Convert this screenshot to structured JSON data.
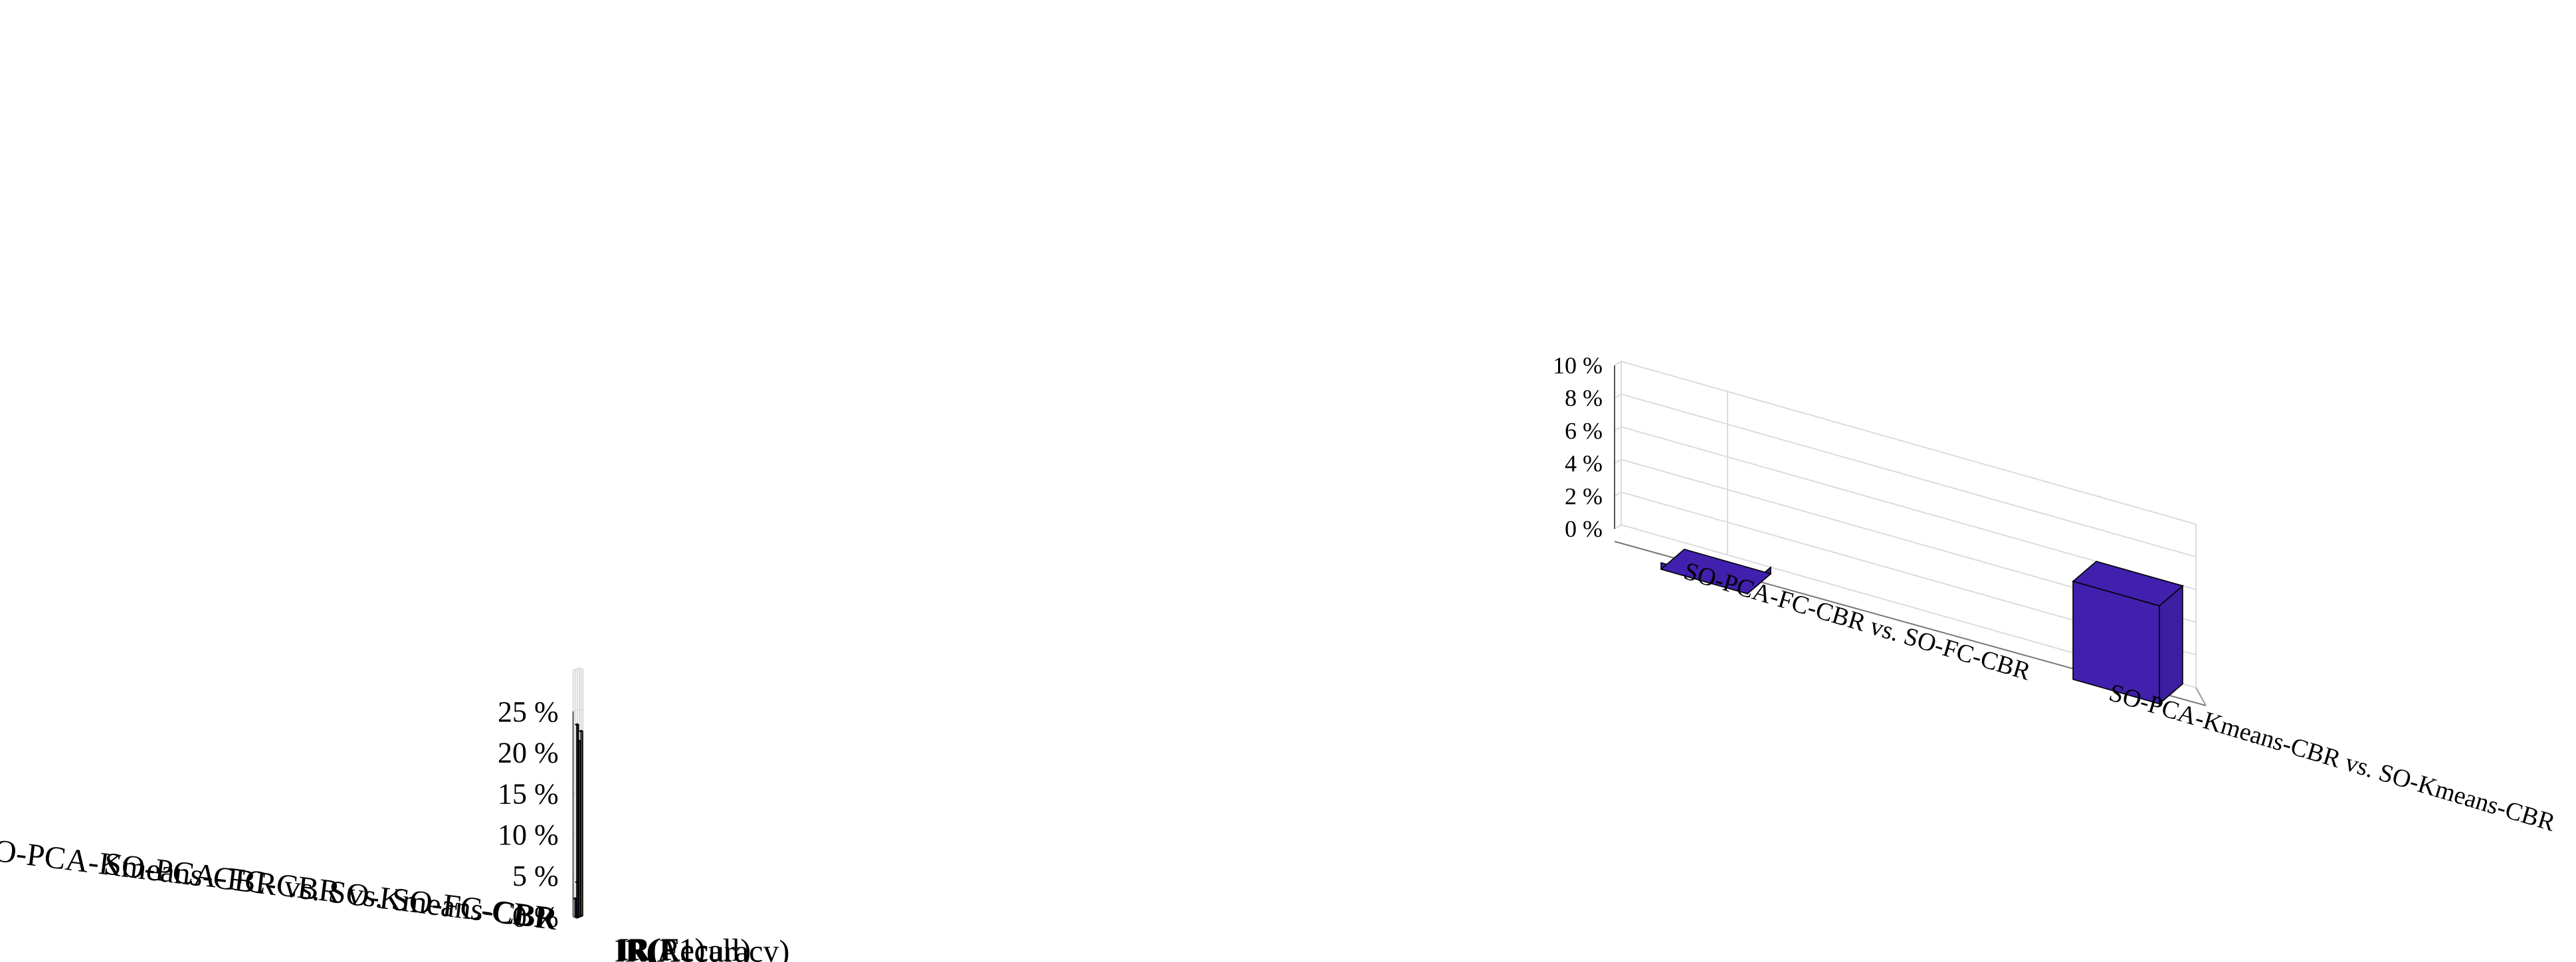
{
  "chart_data": [
    {
      "type": "bar3d",
      "rows": [
        "SO-PCA-FC-CBR vs. SO-FC-CBR",
        "SO-PCA-Kmeans-CBR vs. SO-Kmeans-CBR"
      ],
      "columns": [
        "IR(Accuracy)",
        "IR(Recall)",
        "IR(F1)"
      ],
      "values": [
        [
          2.2,
          4.1,
          4.9
        ],
        [
          23.5,
          21.4,
          22.5
        ]
      ],
      "zlim": [
        0,
        25
      ],
      "zticks": [
        "0 %",
        "5 %",
        "10 %",
        "15 %",
        "20 %",
        "25 %"
      ],
      "grid": true,
      "colors": {
        "IR(Accuracy)": "#4020ac",
        "IR(Recall)": "#00bdb7",
        "IR(F1)": "#f8fa0e"
      }
    },
    {
      "type": "bar3d",
      "categories": [
        "SO-PCA-FC-CBR vs. SO-FC-CBR",
        "SO-PCA-Kmeans-CBR vs. SO-Kmeans-CBR"
      ],
      "values": [
        -0.4,
        6.0
      ],
      "zlim": [
        0,
        10
      ],
      "zticks": [
        "0 %",
        "2 %",
        "4 %",
        "6 %",
        "8 %",
        "10 %"
      ],
      "grid": true,
      "colors": {
        "bar": "#4020ac"
      }
    }
  ]
}
